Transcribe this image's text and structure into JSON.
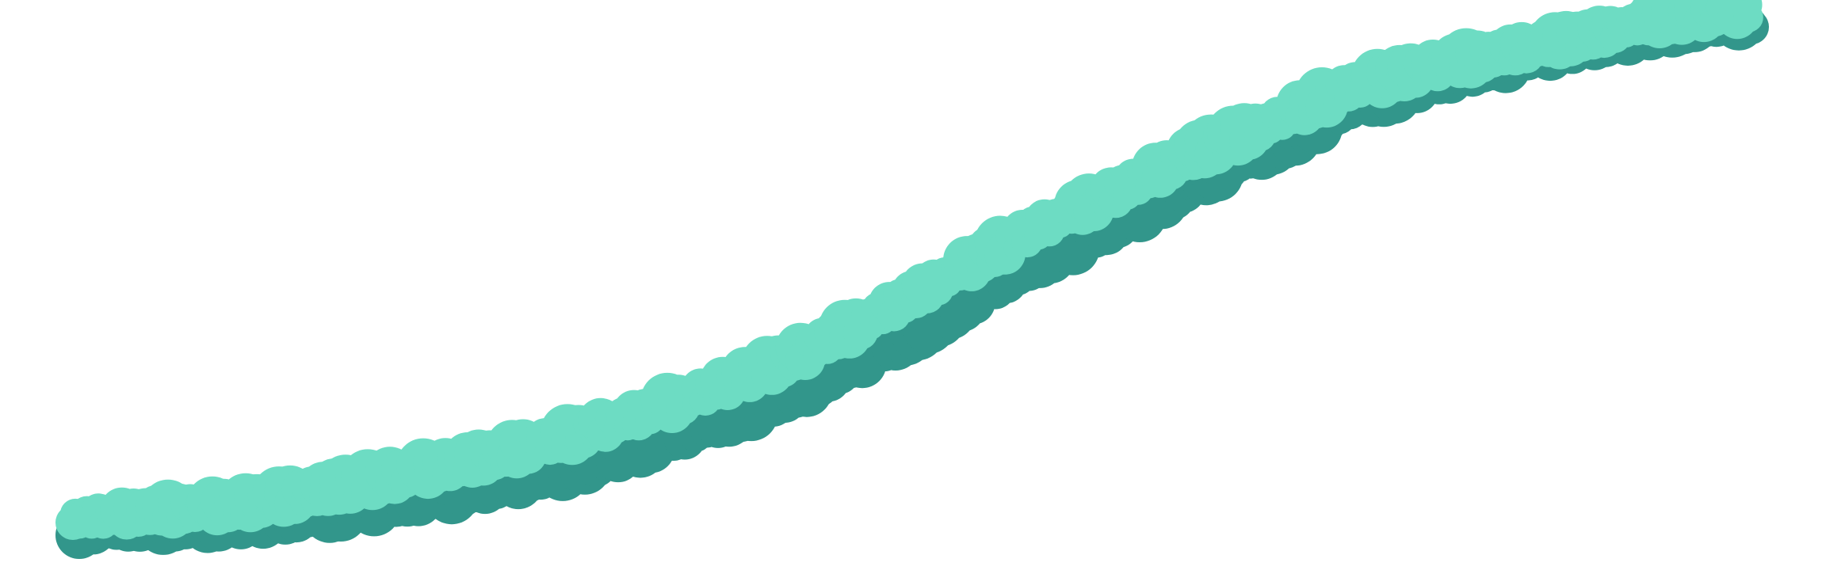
{
  "scene": {
    "background": "#ffffff",
    "ribbon": {
      "shadow_color": "#32968b",
      "highlight_color": "#6ddcc3",
      "shape": "bumpy-cloud-ribbon",
      "direction": "bottom-left-to-top-right"
    }
  }
}
